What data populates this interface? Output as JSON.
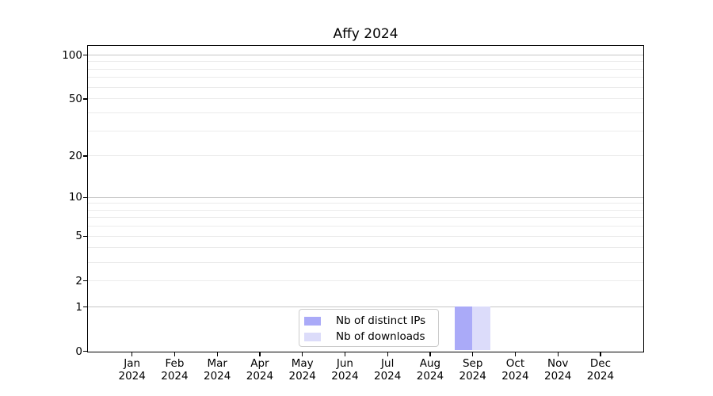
{
  "title": "Affy 2024",
  "chart_data": {
    "type": "bar",
    "title": "Affy 2024",
    "categories": [
      "Jan 2024",
      "Feb 2024",
      "Mar 2024",
      "Apr 2024",
      "May 2024",
      "Jun 2024",
      "Jul 2024",
      "Aug 2024",
      "Sep 2024",
      "Oct 2024",
      "Nov 2024",
      "Dec 2024"
    ],
    "series": [
      {
        "name": "Nb of distinct IPs",
        "color": "#aaaaf8",
        "values": [
          0,
          0,
          0,
          0,
          0,
          0,
          0,
          0,
          1,
          0,
          0,
          0
        ]
      },
      {
        "name": "Nb of downloads",
        "color": "#dcdcfa",
        "values": [
          0,
          0,
          0,
          0,
          0,
          0,
          0,
          0,
          1,
          0,
          0,
          0
        ]
      }
    ],
    "xlabel": "",
    "ylabel": "",
    "y_scale": "log1p",
    "ylim": [
      0,
      116
    ],
    "y_tick_values": [
      100,
      50,
      20,
      10,
      5,
      2,
      1,
      0
    ],
    "y_tick_labels": [
      "100",
      "50",
      "20",
      "10",
      "5",
      "2",
      "1",
      "0"
    ],
    "y_major_gridlines": [
      100,
      10,
      1
    ],
    "y_minor_gridlines": [
      90,
      80,
      70,
      60,
      50,
      40,
      30,
      20,
      9,
      8,
      7,
      6,
      5,
      4,
      3,
      2
    ],
    "grid": "on",
    "legend_position": "lower center"
  },
  "colors": {
    "background": "#ffffff",
    "axis": "#000000",
    "grid_major": "#c6c6c6",
    "grid_minor": "#ebebeb",
    "legend_border": "#cccccc",
    "text": "#000000"
  }
}
